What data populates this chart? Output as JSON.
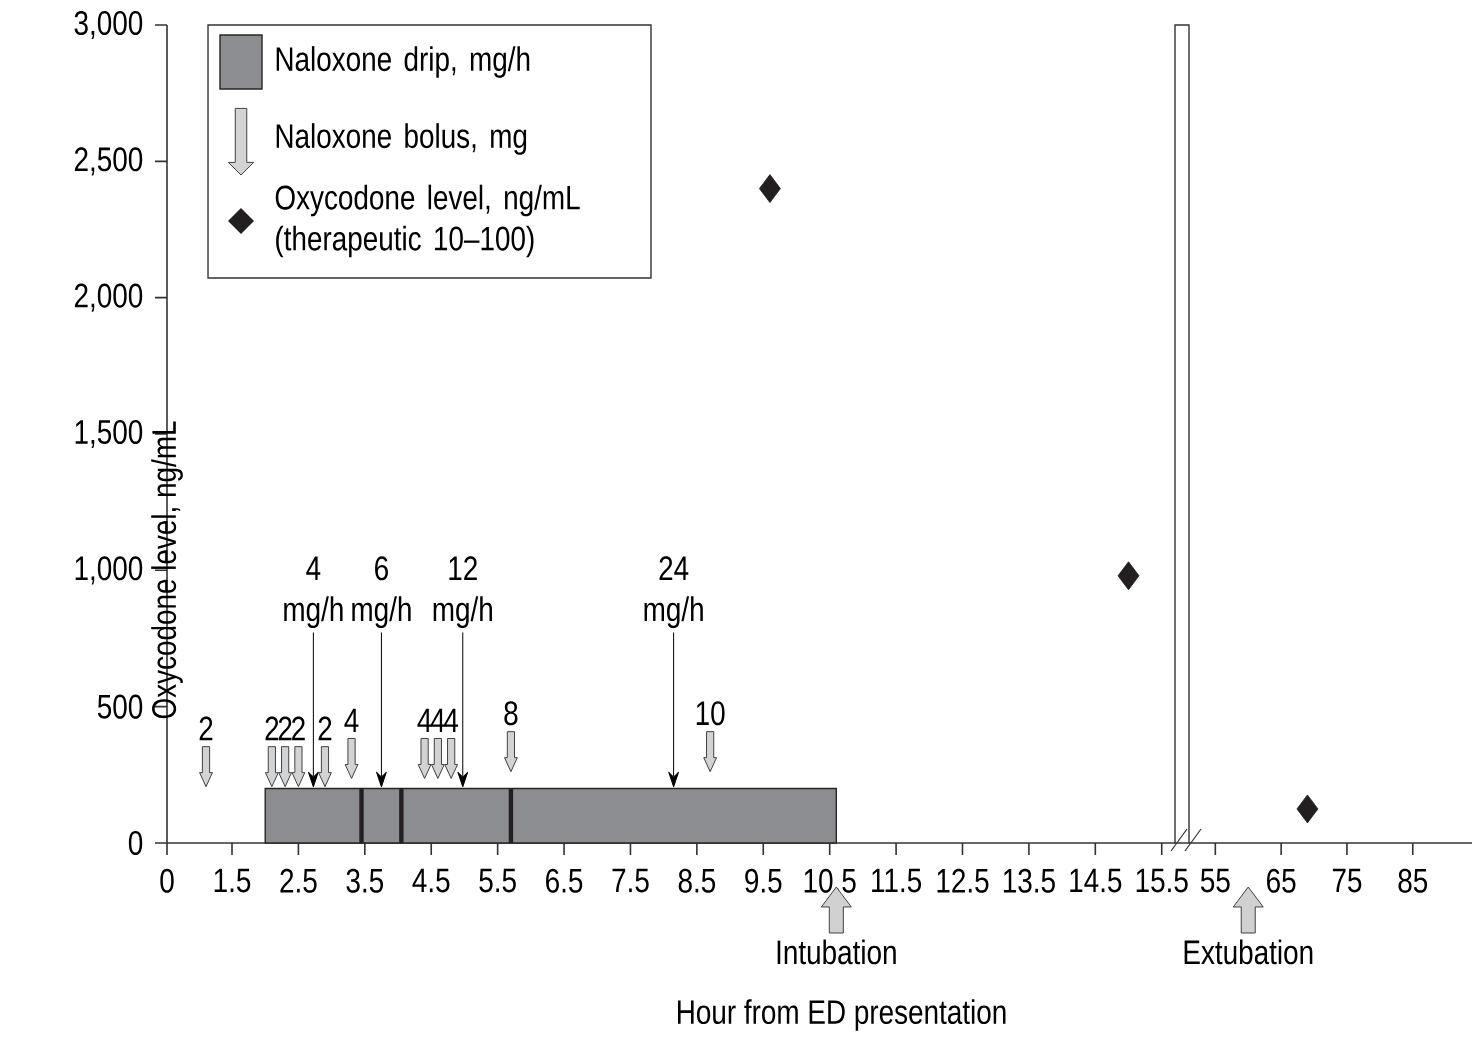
{
  "chart_data": [
    {
      "type": "scatter",
      "ylabel": "Oxycodone level, ng/mL",
      "xlim": [
        0,
        1.5
      ],
      "xticks": [
        0,
        1.5
      ],
      "ylim": [
        0,
        3000
      ],
      "yticks": [
        0,
        500,
        {
          "value": 1000,
          "label": "1,000"
        },
        {
          "value": 1500,
          "label": "1,500"
        },
        {
          "value": 2000,
          "label": "2,000"
        },
        {
          "value": 2500,
          "label": "2,500"
        },
        {
          "value": 3000,
          "label": "3,000"
        }
      ],
      "series": [
        {
          "color": "#d2d3d5",
          "x": [
            0.9
          ],
          "values": [
            280
          ]
        }
      ],
      "annotations": [
        {
          "text": "2",
          "x": 0.9,
          "y": 280
        }
      ]
    },
    {
      "type": "scatter",
      "xlabel": "Hour from ED presentation",
      "xlim": [
        1.5,
        15.7
      ],
      "xticks": [
        2.5,
        3.5,
        4.5,
        5.5,
        6.5,
        7.5,
        8.5,
        9.5,
        10.5,
        11.5,
        12.5,
        13.5,
        14.5,
        15.5
      ],
      "ylim": [
        0,
        3000
      ],
      "tick_labels": "x",
      "legend": "top left",
      "series": [
        {
          "name": "Naloxone drip, mg/h",
          "type": "area",
          "color": "#8c8d90",
          "x": [
            2.0,
            10.6
          ],
          "values": [
            200,
            200
          ]
        },
        {
          "name": "Naloxone bolus, mg",
          "color": "#d2d3d5",
          "x": [
            2.1,
            2.3,
            2.5,
            2.9,
            3.3,
            4.4,
            4.6,
            4.8,
            5.7,
            8.7
          ],
          "values": [
            280,
            280,
            280,
            280,
            310,
            310,
            310,
            310,
            335,
            335
          ]
        },
        {
          "name": "Oxycodone level, ng/mL (therapeutic 10–100)",
          "marker": "diamond",
          "color": "#231f20",
          "x": [
            9.6,
            15.0
          ],
          "values": [
            2400,
            980
          ]
        },
        {
          "type": "line",
          "color": "#231f20",
          "x": [
            3.45,
            3.45
          ],
          "values": [
            0,
            200
          ]
        },
        {
          "type": "line",
          "color": "#231f20",
          "x": [
            4.05,
            4.05
          ],
          "values": [
            0,
            200
          ]
        },
        {
          "type": "line",
          "color": "#231f20",
          "x": [
            5.7,
            5.7
          ],
          "values": [
            0,
            200
          ]
        }
      ],
      "annotations": [
        {
          "text": "2",
          "x": 2.1,
          "y": 280
        },
        {
          "text": "2",
          "x": 2.3,
          "y": 280
        },
        {
          "text": "2",
          "x": 2.5,
          "y": 280
        },
        {
          "text": "2",
          "x": 2.9,
          "y": 280
        },
        {
          "text": "4",
          "x": 3.3,
          "y": 310
        },
        {
          "text": "4",
          "x": 4.4,
          "y": 310
        },
        {
          "text": "4",
          "x": 4.6,
          "y": 310
        },
        {
          "text": "4",
          "x": 4.8,
          "y": 310
        },
        {
          "text": "8",
          "x": 5.7,
          "y": 335
        },
        {
          "text": "10",
          "x": 8.7,
          "y": 335
        },
        "4 mg/h",
        "6 mg/h",
        "12 mg/h",
        "24 mg/h",
        {
          "text": "Intubation",
          "x": 10.6,
          "y": 0
        }
      ]
    },
    {
      "type": "scatter",
      "xlim": [
        51,
        94
      ],
      "xticks": [
        55,
        65,
        75,
        85
      ],
      "ylim": [
        0,
        3000
      ],
      "tick_labels": "x",
      "series": [
        {
          "marker": "diamond",
          "color": "#231f20",
          "x": [
            69
          ],
          "values": [
            125
          ]
        }
      ],
      "annotations": [
        "Extubation"
      ]
    }
  ]
}
